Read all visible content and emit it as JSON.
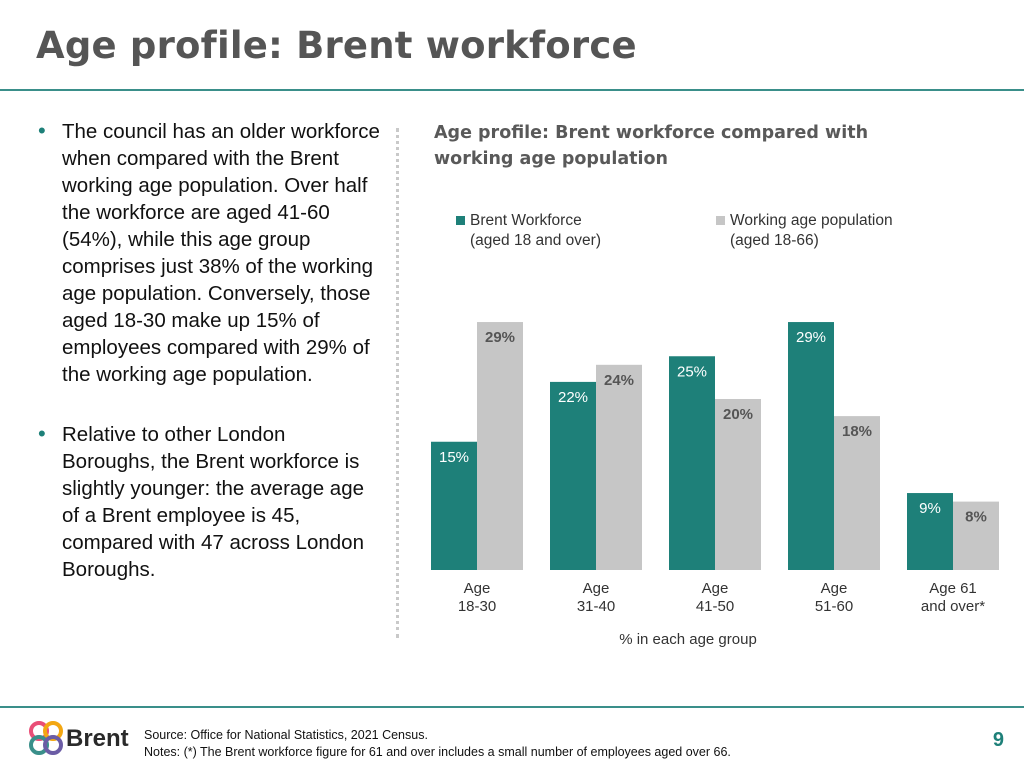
{
  "page": {
    "title": "Age profile: Brent workforce",
    "page_number": "9"
  },
  "bullets": [
    "The council has an older workforce when compared with the Brent working age population. Over half the workforce are aged 41-60 (54%), while this age group comprises just 38% of the working age population. Conversely, those aged 18-30 make up 15% of employees compared with 29% of the working age population.",
    "Relative to other London Boroughs, the Brent workforce is slightly younger: the average age of a Brent employee is 45, compared with 47 across London Boroughs."
  ],
  "bullet_symbol": "•",
  "chart_data": {
    "type": "bar",
    "title": "Age profile: Brent workforce compared with working age population",
    "xlabel": "% in each age group",
    "ylabel": "",
    "ylim": [
      0,
      30
    ],
    "grid": false,
    "legend_position": "top",
    "categories": [
      [
        "Age",
        "18-30"
      ],
      [
        "Age",
        "31-40"
      ],
      [
        "Age",
        "41-50"
      ],
      [
        "Age",
        "51-60"
      ],
      [
        "Age 61",
        "and over*"
      ]
    ],
    "series": [
      {
        "name": [
          "Brent Workforce",
          "(aged 18 and over)"
        ],
        "values": [
          15,
          22,
          25,
          29,
          9
        ],
        "labels": [
          "15%",
          "22%",
          "25%",
          "29%",
          "9%"
        ],
        "color": "#1e8079",
        "label_color": "#ffffff",
        "label_bold": false
      },
      {
        "name": [
          "Working age population",
          "(aged 18-66)"
        ],
        "values": [
          29,
          24,
          20,
          18,
          8
        ],
        "labels": [
          "29%",
          "24%",
          "20%",
          "18%",
          "8%"
        ],
        "color": "#c6c6c6",
        "label_color": "#555555",
        "label_bold": true
      }
    ]
  },
  "footer": {
    "source": "Source: Office for National Statistics, 2021 Census.",
    "notes": "Notes: (*) The Brent workforce figure for 61 and over includes a small number of employees aged over 66."
  },
  "logo": {
    "text": "Brent",
    "colors": [
      "#e94e77",
      "#f3a712",
      "#3a8f8a",
      "#6b5ca5"
    ]
  }
}
